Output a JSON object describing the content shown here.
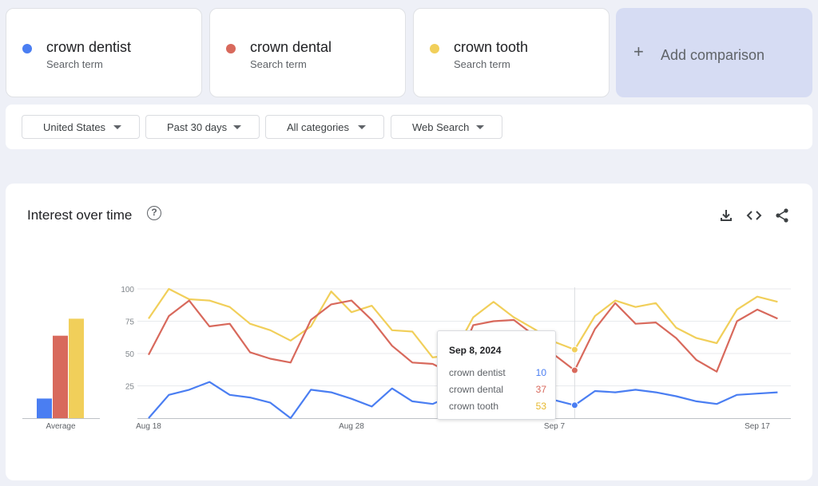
{
  "search_terms": [
    {
      "name": "crown dentist",
      "subtitle": "Search term",
      "color": "#4a7ef2"
    },
    {
      "name": "crown dental",
      "subtitle": "Search term",
      "color": "#d8695c"
    },
    {
      "name": "crown tooth",
      "subtitle": "Search term",
      "color": "#f1cf5a"
    }
  ],
  "add_comparison": {
    "plus": "+",
    "label": "Add comparison"
  },
  "filters": [
    {
      "label": "United States"
    },
    {
      "label": "Past 30 days"
    },
    {
      "label": "All categories"
    },
    {
      "label": "Web Search"
    }
  ],
  "panel": {
    "title": "Interest over time",
    "help_icon": "?",
    "icons": [
      "download-icon",
      "embed-code-icon",
      "share-icon"
    ]
  },
  "tooltip": {
    "date": "Sep 8, 2024",
    "rows": [
      {
        "term": "crown dentist",
        "value": "10",
        "color": "#4a7ef2"
      },
      {
        "term": "crown dental",
        "value": "37",
        "color": "#d8695c"
      },
      {
        "term": "crown tooth",
        "value": "53",
        "color": "#f1cf5a"
      }
    ]
  },
  "chart_data": [
    {
      "type": "bar",
      "categories": [
        "Average"
      ],
      "series": [
        {
          "name": "crown dentist",
          "values": [
            15
          ]
        },
        {
          "name": "crown dental",
          "values": [
            63
          ]
        },
        {
          "name": "crown tooth",
          "values": [
            76
          ]
        }
      ],
      "ylim": [
        0,
        100
      ]
    },
    {
      "type": "line",
      "x": [
        "Aug 18",
        "Aug 19",
        "Aug 20",
        "Aug 21",
        "Aug 22",
        "Aug 23",
        "Aug 24",
        "Aug 25",
        "Aug 26",
        "Aug 27",
        "Aug 28",
        "Aug 29",
        "Aug 30",
        "Aug 31",
        "Sep 1",
        "Sep 2",
        "Sep 3",
        "Sep 4",
        "Sep 5",
        "Sep 6",
        "Sep 7",
        "Sep 8",
        "Sep 9",
        "Sep 10",
        "Sep 11",
        "Sep 12",
        "Sep 13",
        "Sep 14",
        "Sep 15",
        "Sep 16",
        "Sep 17",
        "Sep 18"
      ],
      "x_ticks": [
        "Aug 18",
        "Aug 28",
        "Sep 7",
        "Sep 17"
      ],
      "y_ticks": [
        25,
        50,
        75,
        100
      ],
      "ylim": [
        0,
        100
      ],
      "grid": true,
      "series": [
        {
          "name": "crown dentist",
          "values": [
            0,
            18,
            22,
            28,
            18,
            16,
            12,
            0,
            22,
            20,
            15,
            9,
            23,
            13,
            11,
            18,
            15,
            19,
            19,
            16,
            14,
            10,
            21,
            20,
            22,
            20,
            17,
            13,
            11,
            18,
            19,
            20
          ]
        },
        {
          "name": "crown dental",
          "values": [
            49,
            79,
            91,
            71,
            73,
            51,
            46,
            43,
            76,
            88,
            91,
            76,
            56,
            43,
            42,
            34,
            72,
            75,
            76,
            64,
            49,
            37,
            69,
            89,
            73,
            74,
            62,
            45,
            36,
            75,
            84,
            77
          ]
        },
        {
          "name": "crown tooth",
          "values": [
            77,
            100,
            92,
            91,
            86,
            73,
            68,
            60,
            71,
            98,
            82,
            87,
            68,
            67,
            47,
            49,
            78,
            90,
            78,
            69,
            59,
            53,
            79,
            91,
            86,
            89,
            70,
            62,
            58,
            84,
            94,
            90
          ]
        }
      ],
      "hover_index": 21
    }
  ]
}
